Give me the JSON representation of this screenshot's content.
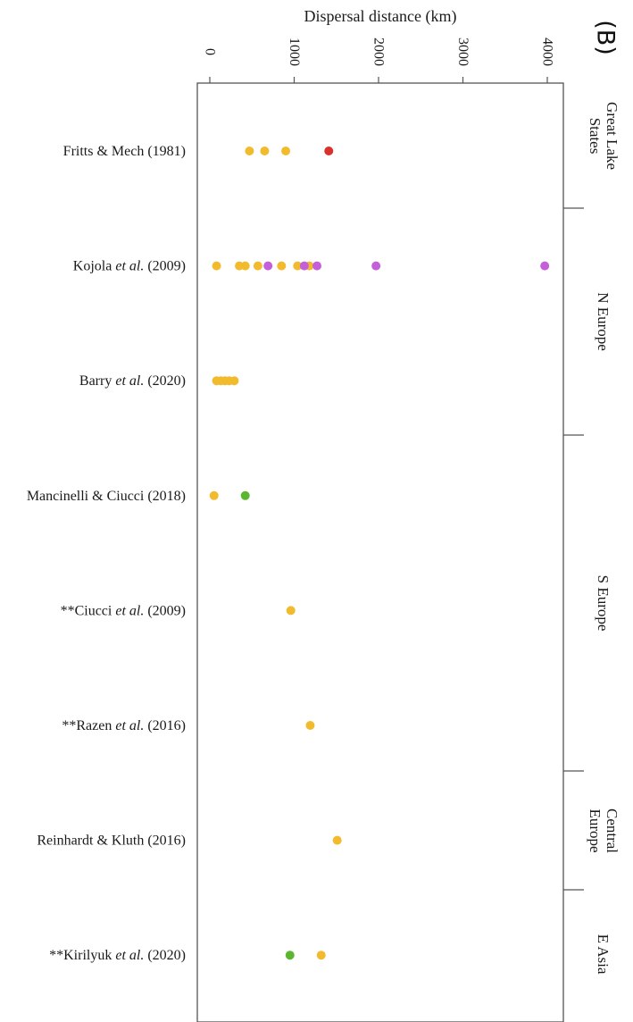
{
  "panel_label": "(B)",
  "chart_data": {
    "type": "scatter",
    "title": "",
    "xlabel": "Dispersal distance (km)",
    "xlim": [
      0,
      4000
    ],
    "xticks": [
      "0",
      "1000",
      "2000",
      "3000",
      "4000"
    ],
    "studies": [
      "Fritts & Mech (1981)",
      "Kojola et al. (2009)",
      "Barry et al. (2020)",
      "Mancinelli & Ciucci (2018)",
      "**Ciucci et al. (2009)",
      "**Razen et al. (2016)",
      "Reinhardt & Kluth (2016)",
      "**Kirilyuk et al. (2020)"
    ],
    "regions": [
      "Great Lake States",
      "N Europe",
      "S Europe",
      "Central Europe",
      "E Asia"
    ],
    "colors": {
      "yellow": "#f2bb2e",
      "red": "#d9312b",
      "purple": "#c55fd9",
      "green": "#5db632",
      "axis": "#555555"
    },
    "series": [
      {
        "color": "yellow",
        "points": [
          {
            "study": "Fritts & Mech (1981)",
            "x": 470
          },
          {
            "study": "Fritts & Mech (1981)",
            "x": 650
          },
          {
            "study": "Fritts & Mech (1981)",
            "x": 900
          },
          {
            "study": "Kojola et al. (2009)",
            "x": 80
          },
          {
            "study": "Kojola et al. (2009)",
            "x": 350
          },
          {
            "study": "Kojola et al. (2009)",
            "x": 420
          },
          {
            "study": "Kojola et al. (2009)",
            "x": 570
          },
          {
            "study": "Kojola et al. (2009)",
            "x": 850
          },
          {
            "study": "Kojola et al. (2009)",
            "x": 1040
          },
          {
            "study": "Kojola et al. (2009)",
            "x": 1180
          },
          {
            "study": "Barry et al. (2020)",
            "x": 80
          },
          {
            "study": "Barry et al. (2020)",
            "x": 130
          },
          {
            "study": "Barry et al. (2020)",
            "x": 180
          },
          {
            "study": "Barry et al. (2020)",
            "x": 230
          },
          {
            "study": "Barry et al. (2020)",
            "x": 290
          },
          {
            "study": "Mancinelli & Ciucci (2018)",
            "x": 50
          },
          {
            "study": "**Ciucci et al. (2009)",
            "x": 960
          },
          {
            "study": "**Razen et al. (2016)",
            "x": 1190
          },
          {
            "study": "Reinhardt & Kluth (2016)",
            "x": 1510
          },
          {
            "study": "**Kirilyuk et al. (2020)",
            "x": 1320
          }
        ]
      },
      {
        "color": "red",
        "points": [
          {
            "study": "Fritts & Mech (1981)",
            "x": 1410
          }
        ]
      },
      {
        "color": "purple",
        "points": [
          {
            "study": "Kojola et al. (2009)",
            "x": 690
          },
          {
            "study": "Kojola et al. (2009)",
            "x": 1120
          },
          {
            "study": "Kojola et al. (2009)",
            "x": 1270
          },
          {
            "study": "Kojola et al. (2009)",
            "x": 1970
          },
          {
            "study": "Kojola et al. (2009)",
            "x": 3970
          }
        ]
      },
      {
        "color": "green",
        "points": [
          {
            "study": "Mancinelli & Ciucci (2018)",
            "x": 420
          },
          {
            "study": "**Kirilyuk et al. (2020)",
            "x": 950
          }
        ]
      }
    ]
  }
}
